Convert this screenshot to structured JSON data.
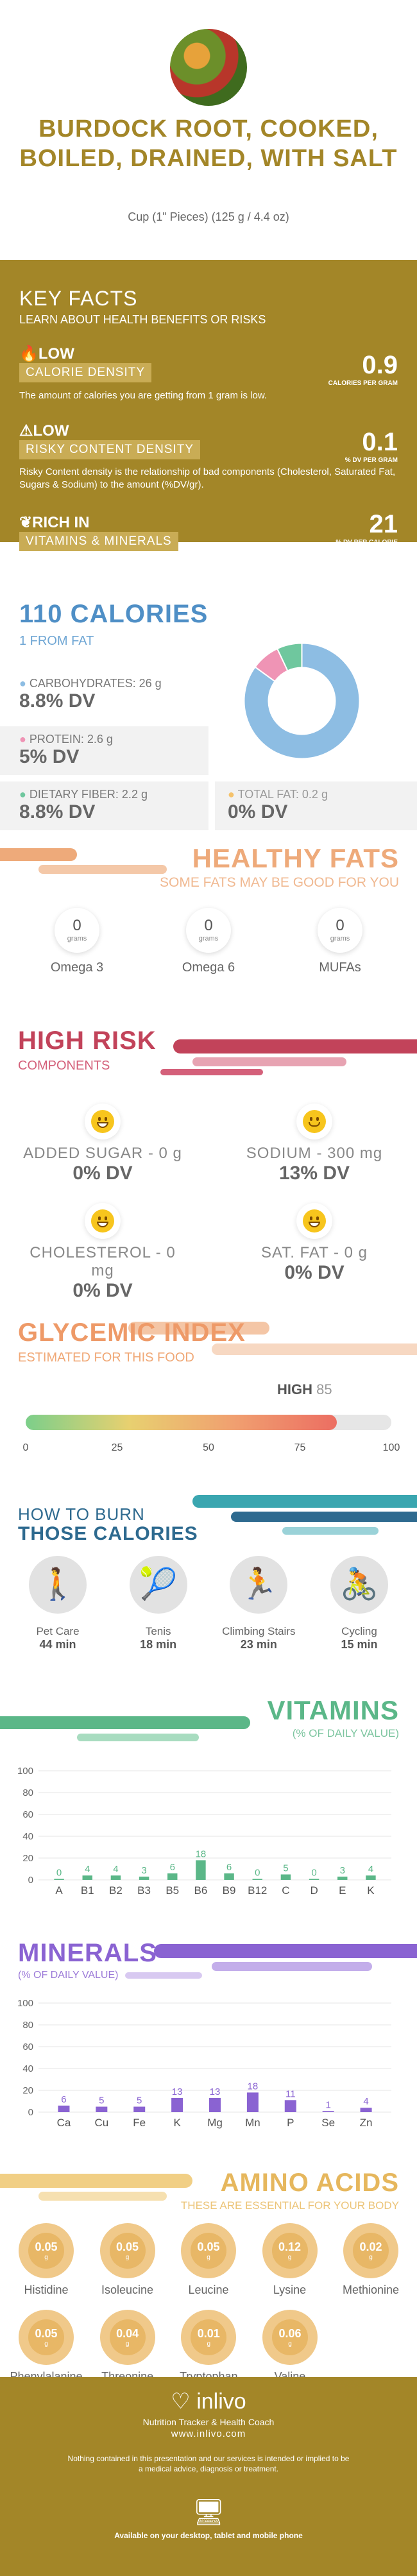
{
  "header": {
    "title": "BURDOCK ROOT, COOKED, BOILED, DRAINED, WITH SALT",
    "serving": "Cup (1\" Pieces) (125 g / 4.4 oz)"
  },
  "key_facts": {
    "title": "KEY FACTS",
    "subtitle": "LEARN ABOUT HEALTH BENEFITS OR RISKS",
    "items": [
      {
        "level": "LOW",
        "label": "CALORIE DENSITY",
        "desc": "The amount of calories you are getting from 1 gram is low.",
        "value": "0.9",
        "unit": "CALORIES PER GRAM"
      },
      {
        "level": "LOW",
        "label": "RISKY CONTENT DENSITY",
        "desc": "Risky Content density is the relationship of bad components (Cholesterol, Saturated Fat, Sugars & Sodium) to the amount (%DV/gr).",
        "value": "0.1",
        "unit": "% DV PER GRAM"
      },
      {
        "level": "RICH IN",
        "label": "VITAMINS & MINERALS",
        "desc": "",
        "value": "21",
        "unit": "% DV PER CALORIE"
      }
    ]
  },
  "calories": {
    "title": "110 CALORIES",
    "from_fat": "1 FROM FAT",
    "macros": [
      {
        "label": "CARBOHYDRATES: 26 g",
        "dv": "8.8% DV",
        "color": "#8dbde3"
      },
      {
        "label": "PROTEIN: 2.6 g",
        "dv": "5% DV",
        "color": "#ef94b5"
      },
      {
        "label": "DIETARY FIBER: 2.2 g",
        "dv": "8.8% DV",
        "color": "#6fc79e"
      },
      {
        "label": "TOTAL FAT: 0.2 g",
        "dv": "0% DV",
        "color": "#f5c26b"
      }
    ],
    "pie": [
      {
        "name": "carbs",
        "value": 85,
        "color": "#8dbde3"
      },
      {
        "name": "protein",
        "value": 8,
        "color": "#ef94b5"
      },
      {
        "name": "fiber",
        "value": 7,
        "color": "#6fc79e"
      }
    ]
  },
  "healthy_fats": {
    "title": "HEALTHY FATS",
    "subtitle": "SOME FATS MAY BE GOOD FOR YOU",
    "items": [
      {
        "value": "0",
        "unit": "grams",
        "name": "Omega 3"
      },
      {
        "value": "0",
        "unit": "grams",
        "name": "Omega 6"
      },
      {
        "value": "0",
        "unit": "grams",
        "name": "MUFAs"
      }
    ]
  },
  "high_risk": {
    "title": "HIGH RISK",
    "subtitle": "COMPONENTS",
    "items": [
      {
        "label": "ADDED SUGAR - 0 g",
        "dv": "0% DV"
      },
      {
        "label": "SODIUM - 300 mg",
        "dv": "13% DV"
      },
      {
        "label": "CHOLESTEROL - 0 mg",
        "dv": "0% DV"
      },
      {
        "label": "SAT. FAT - 0 g",
        "dv": "0% DV"
      }
    ]
  },
  "glycemic": {
    "title": "GLYCEMIC INDEX",
    "subtitle": "ESTIMATED FOR THIS FOOD",
    "level": "HIGH",
    "value": "85",
    "ticks": [
      "0",
      "25",
      "50",
      "75",
      "100"
    ],
    "fraction": 0.85
  },
  "burn": {
    "title_1": "HOW TO BURN",
    "title_2": "THOSE CALORIES",
    "items": [
      {
        "name": "Pet Care",
        "time": "44 min"
      },
      {
        "name": "Tenis",
        "time": "18 min"
      },
      {
        "name": "Climbing Stairs",
        "time": "23 min"
      },
      {
        "name": "Cycling",
        "time": "15 min"
      }
    ]
  },
  "vitamins": {
    "title": "VITAMINS",
    "subtitle": "(% OF DAILY VALUE)"
  },
  "minerals": {
    "title": "MINERALS",
    "subtitle": "(% OF DAILY VALUE)"
  },
  "chart_data": [
    {
      "type": "bar",
      "title": "VITAMINS",
      "categories": [
        "A",
        "B1",
        "B2",
        "B3",
        "B5",
        "B6",
        "B9",
        "B12",
        "C",
        "D",
        "E",
        "K"
      ],
      "values": [
        0,
        4,
        4,
        3,
        6,
        18,
        6,
        0,
        5,
        0,
        3,
        4
      ],
      "ylim": [
        0,
        100
      ],
      "yticks": [
        "0",
        "20",
        "40",
        "60",
        "80",
        "100"
      ],
      "color": "#5bb788"
    },
    {
      "type": "bar",
      "title": "MINERALS",
      "categories": [
        "Ca",
        "Cu",
        "Fe",
        "K",
        "Mg",
        "Mn",
        "P",
        "Se",
        "Zn"
      ],
      "values": [
        6,
        5,
        5,
        13,
        13,
        18,
        11,
        1,
        4
      ],
      "ylim": [
        0,
        100
      ],
      "yticks": [
        "0",
        "20",
        "40",
        "60",
        "80",
        "100"
      ],
      "color": "#8a63d2"
    }
  ],
  "amino": {
    "title": "AMINO ACIDS",
    "subtitle": "THESE ARE ESSENTIAL FOR YOUR BODY",
    "items": [
      {
        "value": "0.05",
        "unit": "g",
        "name": "Histidine"
      },
      {
        "value": "0.05",
        "unit": "g",
        "name": "Isoleucine"
      },
      {
        "value": "0.05",
        "unit": "g",
        "name": "Leucine"
      },
      {
        "value": "0.12",
        "unit": "g",
        "name": "Lysine"
      },
      {
        "value": "0.02",
        "unit": "g",
        "name": "Methionine"
      },
      {
        "value": "0.05",
        "unit": "g",
        "name": "Phenylalanine"
      },
      {
        "value": "0.04",
        "unit": "g",
        "name": "Threonine"
      },
      {
        "value": "0.01",
        "unit": "g",
        "name": "Tryptophan"
      },
      {
        "value": "0.06",
        "unit": "g",
        "name": "Valine"
      }
    ]
  },
  "footer": {
    "brand": "inlivo",
    "tagline": "Nutrition Tracker & Health Coach",
    "url": "www.inlivo.com",
    "disclaimer": "Nothing contained in this presentation and our services is intended or implied to be a medical advice, diagnosis or treatment.",
    "available": "Available on your desktop, tablet and mobile phone"
  }
}
